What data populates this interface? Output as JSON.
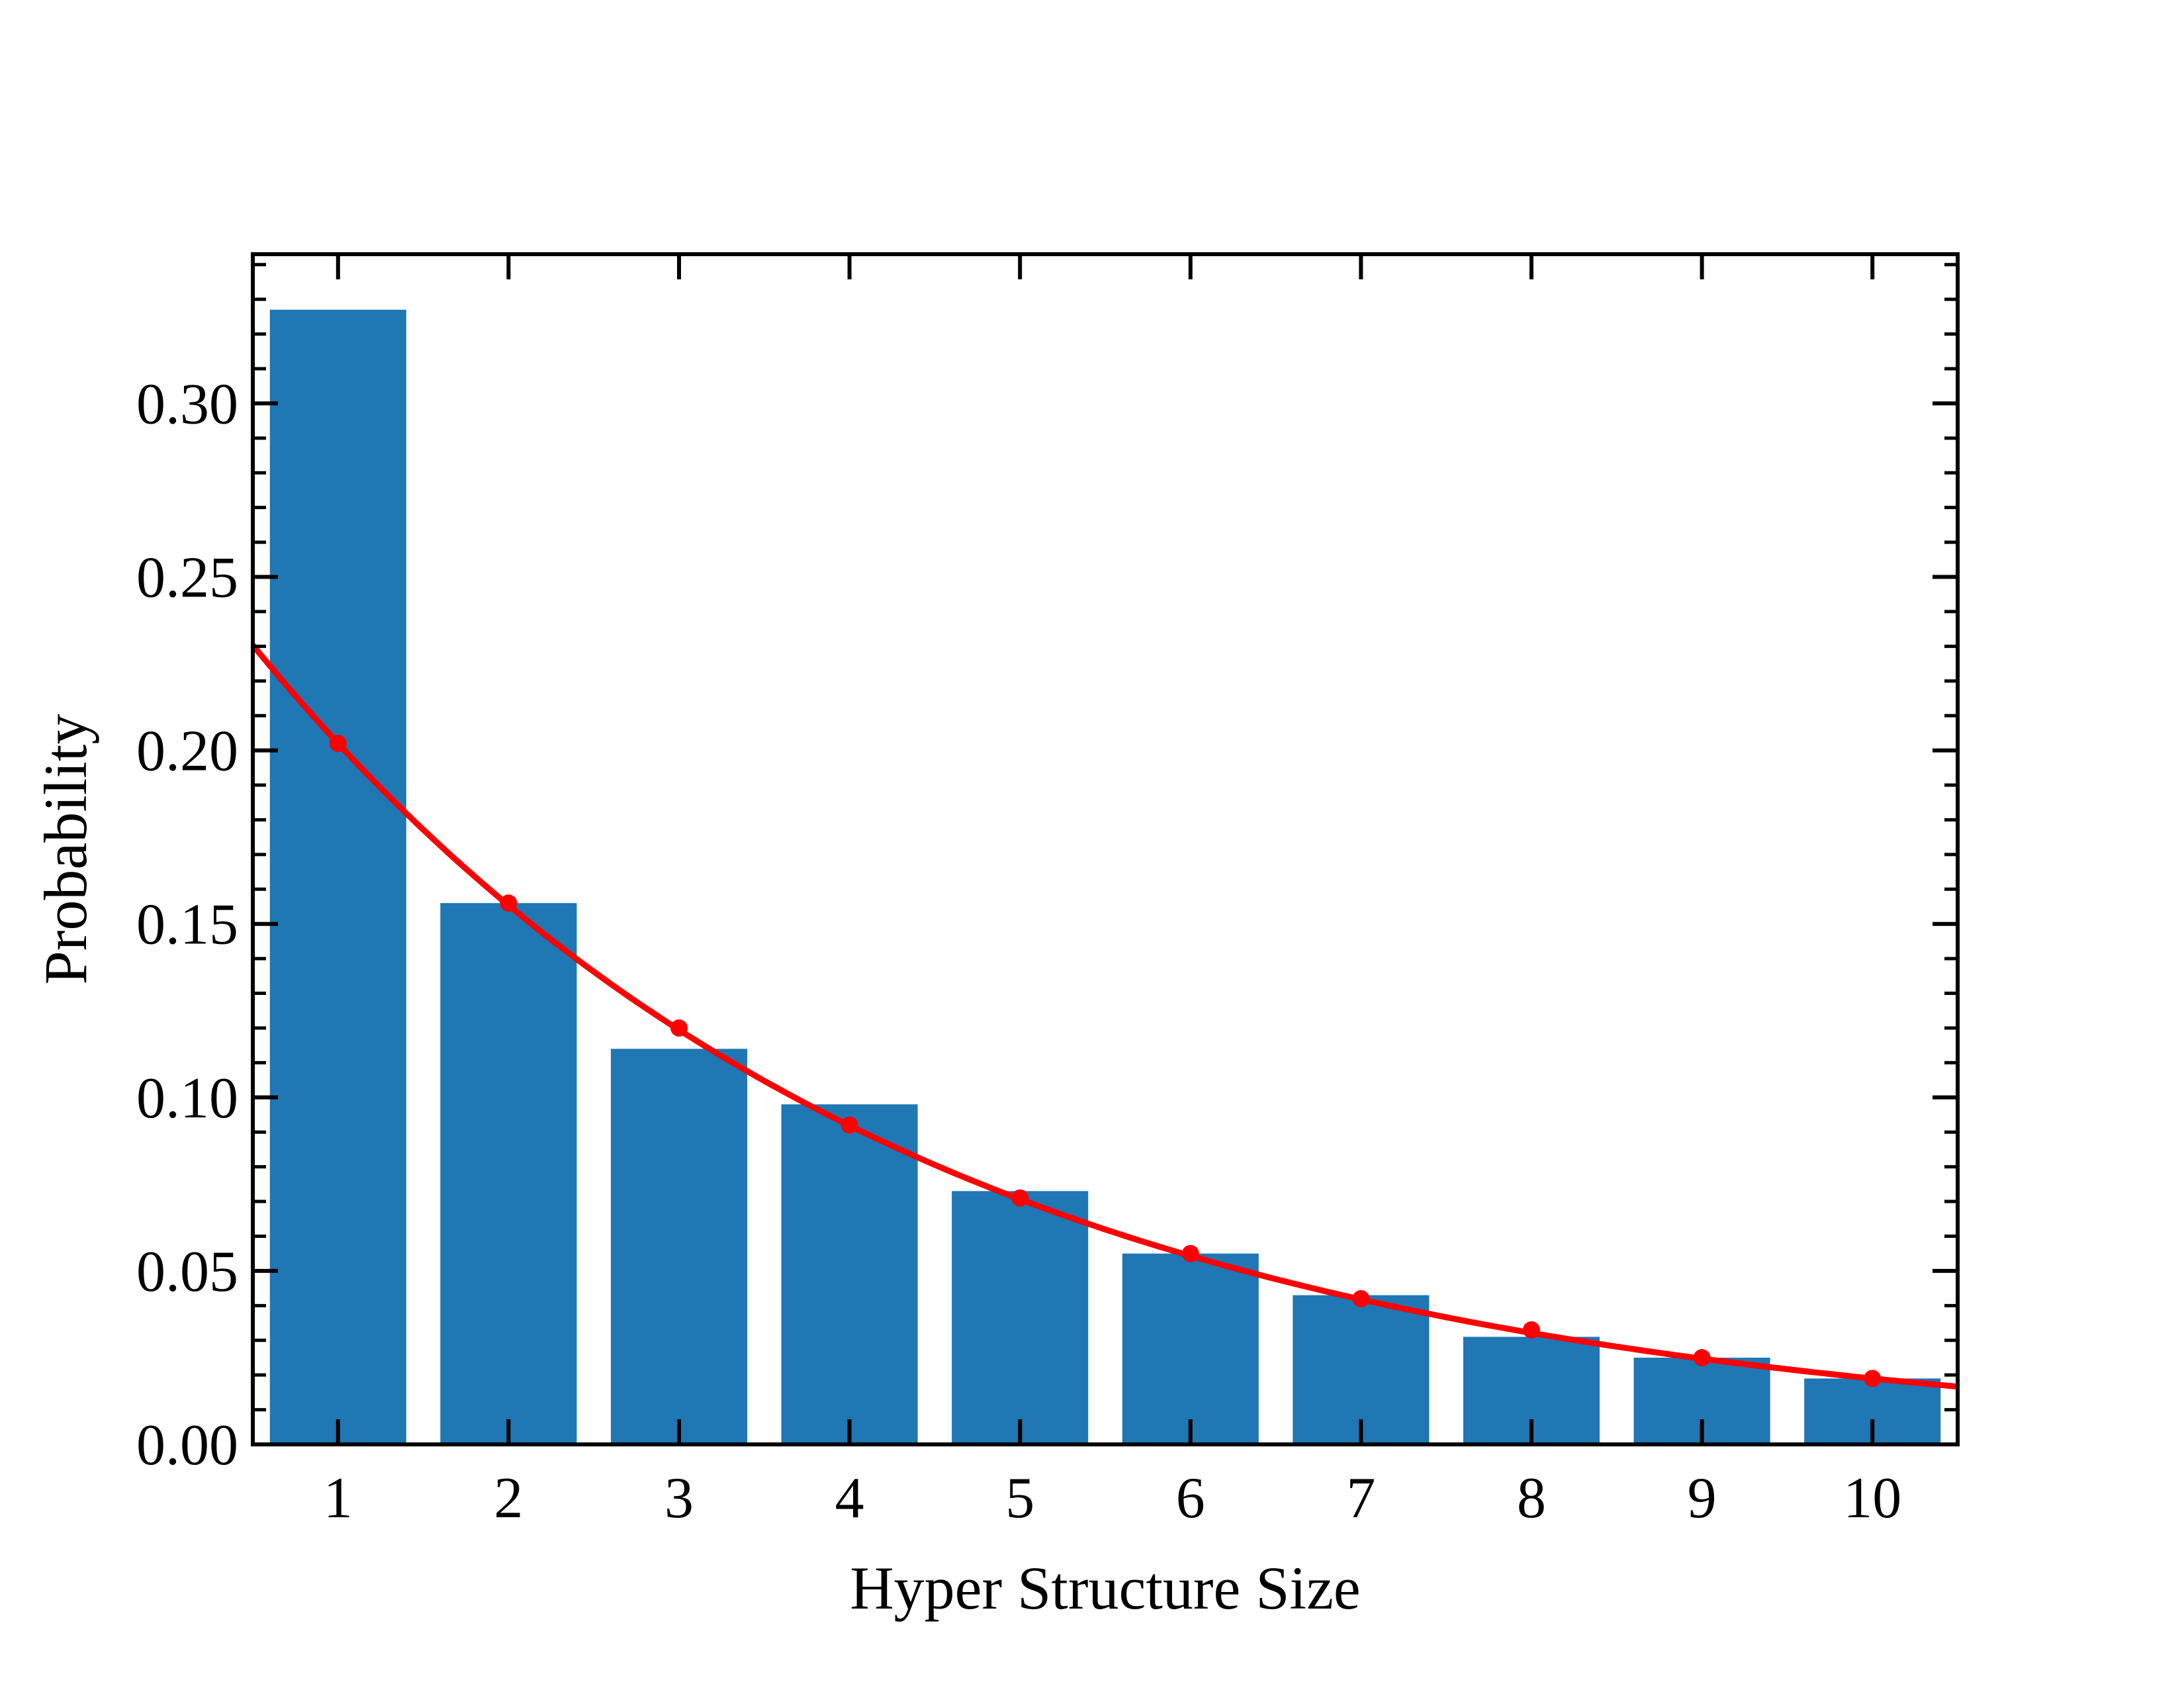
{
  "chart_data": {
    "type": "bar",
    "title": "",
    "xlabel": "Hyper Structure Size",
    "ylabel": "Probability",
    "categories": [
      "1",
      "2",
      "3",
      "4",
      "5",
      "6",
      "7",
      "8",
      "9",
      "10"
    ],
    "series": [
      {
        "type": "bar",
        "color": "#1f77b4",
        "x": [
          1,
          2,
          3,
          4,
          5,
          6,
          7,
          8,
          9,
          10
        ],
        "values": [
          0.327,
          0.156,
          0.114,
          0.098,
          0.073,
          0.055,
          0.043,
          0.031,
          0.025,
          0.019
        ]
      },
      {
        "type": "line",
        "color": "#ff0000",
        "x": [
          1,
          2,
          3,
          4,
          5,
          6,
          7,
          8,
          9,
          10
        ],
        "values": [
          0.202,
          0.156,
          0.12,
          0.092,
          0.071,
          0.055,
          0.042,
          0.033,
          0.025,
          0.019
        ]
      }
    ],
    "xlim": [
      0.5,
      10.5
    ],
    "ylim": [
      0,
      0.343
    ],
    "yticks": [
      "0.00",
      "0.05",
      "0.10",
      "0.15",
      "0.20",
      "0.25",
      "0.30"
    ],
    "ytick_values": [
      0,
      0.05,
      0.1,
      0.15,
      0.2,
      0.25,
      0.3
    ],
    "grid": false,
    "legend": "none"
  }
}
